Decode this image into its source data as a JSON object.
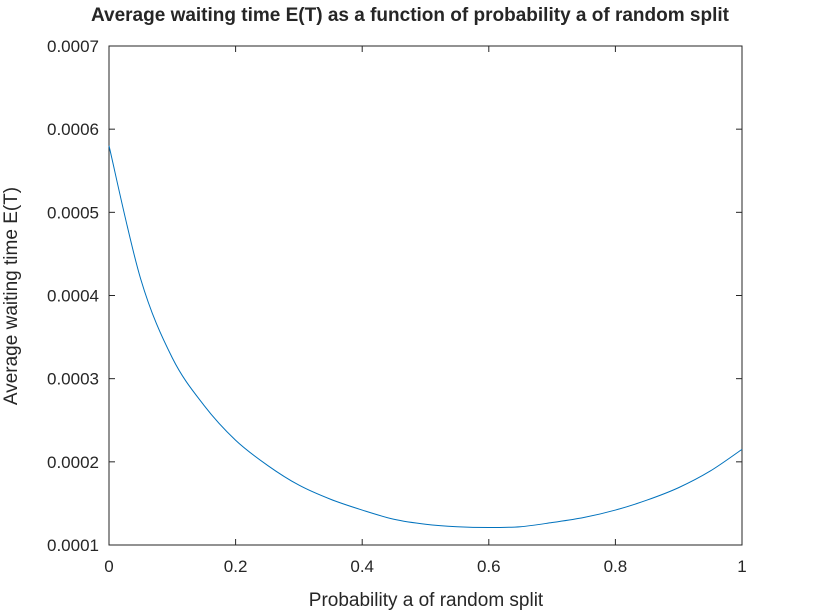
{
  "chart_data": {
    "type": "line",
    "title": "Average waiting time E(T) as a function of probability a of random split",
    "xlabel": "Probability a of random split",
    "ylabel": "Average waiting time E(T)",
    "xlim": [
      0,
      1
    ],
    "ylim": [
      0.0001,
      0.0007
    ],
    "x_ticks": [
      0,
      0.2,
      0.4,
      0.6,
      0.8,
      1
    ],
    "x_tick_labels": [
      "0",
      "0.2",
      "0.4",
      "0.6",
      "0.8",
      "1"
    ],
    "y_ticks": [
      0.0001,
      0.0002,
      0.0003,
      0.0004,
      0.0005,
      0.0006,
      0.0007
    ],
    "y_tick_labels": [
      "0.0001",
      "0.0002",
      "0.0003",
      "0.0004",
      "0.0005",
      "0.0006",
      "0.0007"
    ],
    "grid": false,
    "series": [
      {
        "color": "#0072bd",
        "x": [
          0,
          0.05,
          0.1,
          0.15,
          0.2,
          0.25,
          0.3,
          0.35,
          0.4,
          0.45,
          0.5,
          0.55,
          0.6,
          0.65,
          0.7,
          0.75,
          0.8,
          0.85,
          0.9,
          0.95,
          1
        ],
        "y": [
          0.00058,
          0.00042,
          0.000325,
          0.000268,
          0.000226,
          0.000196,
          0.000172,
          0.000155,
          0.000142,
          0.000131,
          0.000125,
          0.000122,
          0.000121,
          0.000122,
          0.000127,
          0.000133,
          0.000142,
          0.000154,
          0.000169,
          0.000189,
          0.000215
        ]
      }
    ]
  }
}
